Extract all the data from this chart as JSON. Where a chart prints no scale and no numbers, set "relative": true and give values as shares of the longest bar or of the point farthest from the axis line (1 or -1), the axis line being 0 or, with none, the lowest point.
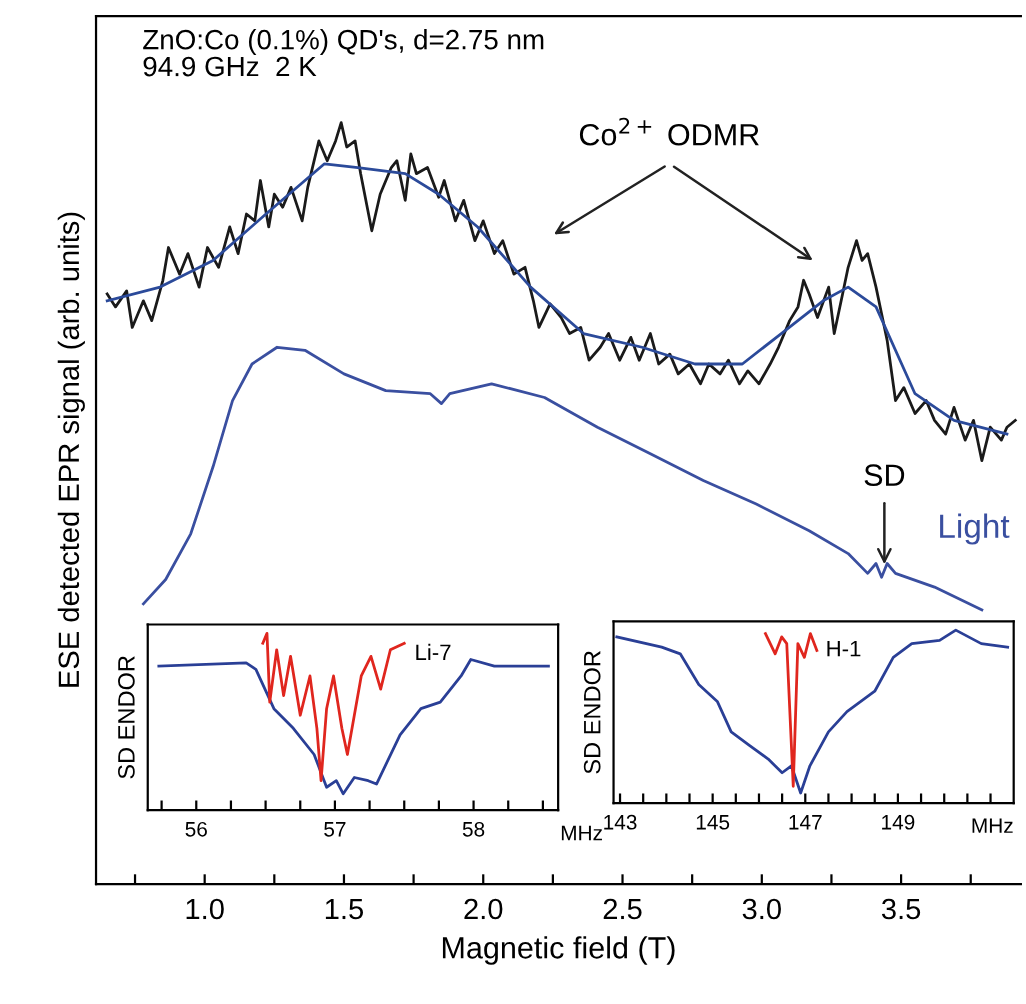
{
  "chart_data": [
    {
      "type": "line",
      "relative": true,
      "xlabel": "Magnetic field (T)",
      "ylabel": "ESE detected EPR signal (arb. units)",
      "xlim": [
        0.61,
        3.93
      ],
      "xticks": [
        {
          "value": 0.75,
          "label": null
        },
        {
          "value": 1.0,
          "label": "1.0"
        },
        {
          "value": 1.25,
          "label": null
        },
        {
          "value": 1.5,
          "label": "1.5"
        },
        {
          "value": 1.75,
          "label": null
        },
        {
          "value": 2.0,
          "label": "2.0"
        },
        {
          "value": 2.25,
          "label": null
        },
        {
          "value": 2.5,
          "label": "2.5"
        },
        {
          "value": 2.75,
          "label": null
        },
        {
          "value": 3.0,
          "label": "3.0"
        },
        {
          "value": 3.25,
          "label": null
        },
        {
          "value": 3.5,
          "label": "3.5"
        },
        {
          "value": 3.75,
          "label": null
        }
      ],
      "tick_labels": "x",
      "grid": false,
      "legend": false,
      "marker": "none",
      "line_style": "solid",
      "annotations": [
        "ZnO:Co (0.1%) QD's, d=2.75 nm",
        "94.9 GHz  2 K",
        "Co$^{2+}$ ODMR",
        {
          "text": "SD",
          "x": 3.44,
          "y": 0.42
        }
      ],
      "series": [
        {
          "color": "#1a1a1a",
          "x": [
            0.65,
            0.68,
            0.72,
            0.74,
            0.78,
            0.81,
            0.85,
            0.87,
            0.91,
            0.94,
            0.98,
            1.01,
            1.05,
            1.09,
            1.12,
            1.15,
            1.18,
            1.2,
            1.23,
            1.25,
            1.28,
            1.31,
            1.35,
            1.37,
            1.41,
            1.44,
            1.47,
            1.49,
            1.51,
            1.54,
            1.56,
            1.6,
            1.63,
            1.67,
            1.69,
            1.72,
            1.74,
            1.76,
            1.8,
            1.84,
            1.86,
            1.9,
            1.93,
            1.97,
            2.0,
            2.04,
            2.07,
            2.11,
            2.15,
            2.18,
            2.2,
            2.24,
            2.28,
            2.31,
            2.35,
            2.38,
            2.42,
            2.45,
            2.49,
            2.53,
            2.56,
            2.6,
            2.63,
            2.67,
            2.7,
            2.74,
            2.78,
            2.81,
            2.85,
            2.88,
            2.92,
            2.95,
            2.99,
            3.03,
            3.06,
            3.1,
            3.13,
            3.15,
            3.17,
            3.2,
            3.24,
            3.26,
            3.29,
            3.31,
            3.34,
            3.36,
            3.38,
            3.41,
            3.43,
            3.45,
            3.48,
            3.51,
            3.55,
            3.59,
            3.62,
            3.66,
            3.69,
            3.73,
            3.76,
            3.79,
            3.82,
            3.86,
            3.88,
            3.91
          ],
          "values": [
            0.775,
            0.758,
            0.779,
            0.731,
            0.766,
            0.74,
            0.793,
            0.836,
            0.801,
            0.828,
            0.784,
            0.836,
            0.81,
            0.863,
            0.828,
            0.88,
            0.871,
            0.924,
            0.863,
            0.906,
            0.889,
            0.915,
            0.871,
            0.915,
            0.976,
            0.95,
            0.976,
            1.0,
            0.968,
            0.976,
            0.933,
            0.858,
            0.906,
            0.941,
            0.95,
            0.898,
            0.959,
            0.933,
            0.941,
            0.902,
            0.924,
            0.871,
            0.898,
            0.845,
            0.871,
            0.828,
            0.845,
            0.801,
            0.81,
            0.766,
            0.731,
            0.762,
            0.744,
            0.723,
            0.731,
            0.688,
            0.705,
            0.723,
            0.688,
            0.718,
            0.688,
            0.723,
            0.683,
            0.696,
            0.67,
            0.683,
            0.657,
            0.683,
            0.67,
            0.688,
            0.657,
            0.674,
            0.657,
            0.683,
            0.705,
            0.74,
            0.758,
            0.793,
            0.775,
            0.744,
            0.784,
            0.723,
            0.775,
            0.81,
            0.845,
            0.819,
            0.828,
            0.784,
            0.749,
            0.714,
            0.635,
            0.652,
            0.618,
            0.635,
            0.609,
            0.591,
            0.626,
            0.583,
            0.609,
            0.556,
            0.6,
            0.583,
            0.6,
            0.609
          ]
        },
        {
          "color": "#2b4a9a",
          "x": [
            0.65,
            0.84,
            1.03,
            1.22,
            1.43,
            1.55,
            1.72,
            1.84,
            1.98,
            2.17,
            2.36,
            2.57,
            2.76,
            2.93,
            3.07,
            3.22,
            3.31,
            3.41,
            3.55,
            3.69,
            3.88
          ],
          "values": [
            0.766,
            0.784,
            0.819,
            0.88,
            0.946,
            0.941,
            0.933,
            0.906,
            0.863,
            0.784,
            0.723,
            0.705,
            0.683,
            0.683,
            0.723,
            0.766,
            0.784,
            0.758,
            0.644,
            0.609,
            0.591
          ]
        },
        {
          "name": "Light",
          "color": "#3a4fa0",
          "x": [
            0.78,
            0.86,
            0.95,
            1.03,
            1.1,
            1.17,
            1.26,
            1.36,
            1.5,
            1.65,
            1.81,
            1.85,
            1.88,
            2.03,
            2.22,
            2.41,
            2.6,
            2.79,
            2.98,
            3.17,
            3.31,
            3.38,
            3.41,
            3.43,
            3.45,
            3.48,
            3.62,
            3.79
          ],
          "values": [
            0.368,
            0.4,
            0.46,
            0.548,
            0.635,
            0.683,
            0.705,
            0.701,
            0.67,
            0.648,
            0.644,
            0.631,
            0.644,
            0.657,
            0.639,
            0.6,
            0.565,
            0.53,
            0.499,
            0.464,
            0.434,
            0.408,
            0.421,
            0.403,
            0.421,
            0.408,
            0.39,
            0.36
          ]
        }
      ]
    },
    {
      "type": "line",
      "relative": true,
      "ylabel": "SD ENDOR",
      "xlabel": "MHz",
      "xlim": [
        55.65,
        58.61
      ],
      "xticks": [
        {
          "value": 55.75,
          "label": null
        },
        56,
        {
          "value": 56.25,
          "label": null
        },
        {
          "value": 56.5,
          "label": null
        },
        {
          "value": 56.75,
          "label": null
        },
        57,
        {
          "value": 57.25,
          "label": null
        },
        {
          "value": 57.5,
          "label": null
        },
        {
          "value": 57.75,
          "label": null
        },
        58,
        {
          "value": 58.25,
          "label": null
        },
        {
          "value": 58.5,
          "label": null
        }
      ],
      "tick_labels": "x",
      "grid": false,
      "legend": false,
      "marker": "none",
      "line_style": "solid",
      "annotations": [
        "Li-7"
      ],
      "series": [
        {
          "color": "#2a3f96",
          "x": [
            55.73,
            56.36,
            56.43,
            56.56,
            56.7,
            56.85,
            56.94,
            57.01,
            57.06,
            57.14,
            57.24,
            57.3,
            57.47,
            57.62,
            57.76,
            57.91,
            57.98,
            58.15,
            58.54
          ],
          "values": [
            0.815,
            0.833,
            0.796,
            0.574,
            0.463,
            0.315,
            0.13,
            0.167,
            0.093,
            0.185,
            0.167,
            0.148,
            0.426,
            0.574,
            0.611,
            0.759,
            0.852,
            0.815,
            0.815
          ]
        },
        {
          "color": "#e0261e",
          "x": [
            56.48,
            56.51,
            56.53,
            56.58,
            56.63,
            56.68,
            56.75,
            56.82,
            56.87,
            56.9,
            56.94,
            56.99,
            57.05,
            57.09,
            57.14,
            57.19,
            57.26,
            57.33,
            57.4,
            57.5
          ],
          "values": [
            0.944,
            1.0,
            0.611,
            0.907,
            0.648,
            0.87,
            0.537,
            0.759,
            0.463,
            0.167,
            0.574,
            0.759,
            0.463,
            0.315,
            0.537,
            0.759,
            0.87,
            0.685,
            0.907,
            0.944
          ]
        }
      ]
    },
    {
      "type": "line",
      "relative": true,
      "ylabel": "SD ENDOR",
      "xlabel": "MHz",
      "xlim": [
        142.86,
        151.5
      ],
      "xticks": [
        143,
        {
          "value": 143.5,
          "label": null
        },
        {
          "value": 144,
          "label": null
        },
        {
          "value": 144.5,
          "label": null
        },
        145,
        {
          "value": 145.5,
          "label": null
        },
        {
          "value": 146,
          "label": null
        },
        {
          "value": 146.5,
          "label": null
        },
        147,
        {
          "value": 147.5,
          "label": null
        },
        {
          "value": 148,
          "label": null
        },
        {
          "value": 148.5,
          "label": null
        },
        149,
        {
          "value": 149.5,
          "label": null
        },
        {
          "value": 150,
          "label": null
        },
        {
          "value": 150.5,
          "label": null
        },
        {
          "value": 151,
          "label": null
        }
      ],
      "tick_labels": "x",
      "grid": false,
      "legend": false,
      "marker": "none",
      "line_style": "solid",
      "annotations": [
        "H-1"
      ],
      "series": [
        {
          "color": "#2a3f96",
          "x": [
            142.93,
            143.9,
            144.3,
            144.7,
            145.1,
            145.4,
            145.8,
            146.2,
            146.5,
            146.7,
            146.9,
            147.1,
            147.5,
            147.9,
            148.5,
            148.9,
            149.3,
            149.9,
            150.25,
            150.8,
            151.37
          ],
          "values": [
            0.961,
            0.902,
            0.863,
            0.686,
            0.588,
            0.412,
            0.333,
            0.255,
            0.176,
            0.216,
            0.059,
            0.216,
            0.412,
            0.529,
            0.647,
            0.843,
            0.922,
            0.941,
            1.0,
            0.922,
            0.902
          ]
        },
        {
          "color": "#e0261e",
          "x": [
            146.14,
            146.35,
            146.49,
            146.6,
            146.74,
            146.84,
            146.98,
            147.11,
            147.25
          ],
          "values": [
            0.98,
            0.863,
            0.961,
            0.922,
            0.098,
            0.922,
            0.843,
            0.98,
            0.882
          ]
        }
      ]
    }
  ]
}
